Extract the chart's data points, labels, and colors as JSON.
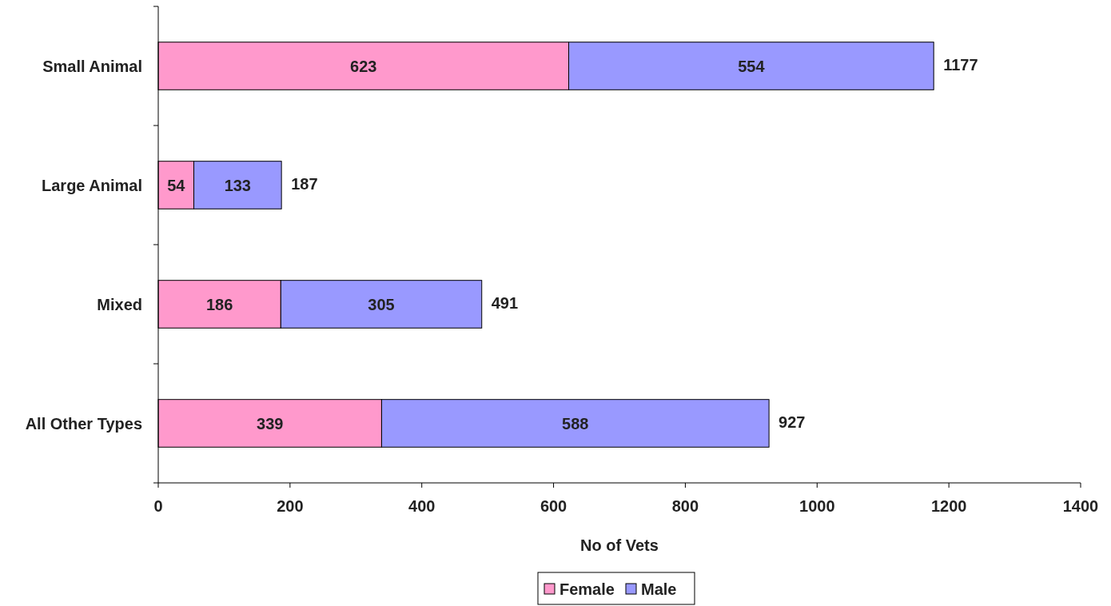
{
  "chart_data": {
    "type": "bar",
    "orientation": "horizontal",
    "stacked": true,
    "categories": [
      "Small Animal",
      "Large Animal",
      "Mixed",
      "All Other Types"
    ],
    "series": [
      {
        "name": "Female",
        "color": "#ff99cc",
        "values": [
          623,
          54,
          186,
          339
        ]
      },
      {
        "name": "Male",
        "color": "#9999ff",
        "values": [
          554,
          133,
          305,
          588
        ]
      }
    ],
    "totals": [
      "1177",
      "187",
      "491",
      "927"
    ],
    "data_labels": true,
    "xlabel": "No of Vets",
    "xlim": [
      0,
      1400
    ],
    "xticks": [
      0,
      200,
      400,
      600,
      800,
      1000,
      1200,
      1400
    ],
    "grid": false,
    "legend": "bottom"
  }
}
